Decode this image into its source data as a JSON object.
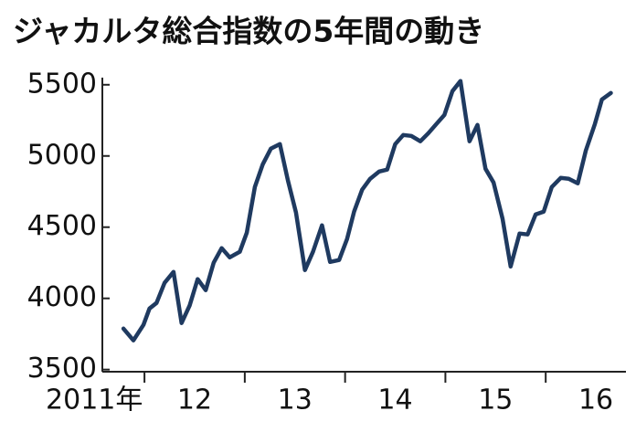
{
  "chart_data": {
    "type": "line",
    "title": "ジャカルタ総合指数の5年間の動き",
    "x": [
      2011.79,
      2011.89,
      2011.99,
      2012.05,
      2012.12,
      2012.2,
      2012.29,
      2012.37,
      2012.45,
      2012.53,
      2012.61,
      2012.69,
      2012.77,
      2012.85,
      2012.95,
      2013.02,
      2013.1,
      2013.18,
      2013.26,
      2013.35,
      2013.43,
      2013.51,
      2013.6,
      2013.68,
      2013.77,
      2013.85,
      2013.94,
      2014.02,
      2014.09,
      2014.17,
      2014.25,
      2014.34,
      2014.42,
      2014.5,
      2014.58,
      2014.66,
      2014.75,
      2014.83,
      2014.91,
      2014.99,
      2015.07,
      2015.15,
      2015.24,
      2015.32,
      2015.4,
      2015.48,
      2015.57,
      2015.65,
      2015.74,
      2015.82,
      2015.9,
      2015.98,
      2016.06,
      2016.15,
      2016.23,
      2016.32,
      2016.4,
      2016.49,
      2016.56,
      2016.65
    ],
    "series": [
      {
        "color": "#1f3a60",
        "values": [
          3788,
          3705,
          3814,
          3929,
          3968,
          4109,
          4186,
          3827,
          3949,
          4135,
          4058,
          4250,
          4353,
          4288,
          4327,
          4462,
          4782,
          4942,
          5051,
          5083,
          4827,
          4603,
          4199,
          4327,
          4513,
          4256,
          4269,
          4417,
          4609,
          4763,
          4840,
          4891,
          4904,
          5083,
          5147,
          5141,
          5103,
          5160,
          5224,
          5288,
          5455,
          5526,
          5103,
          5218,
          4910,
          4814,
          4558,
          4224,
          4455,
          4449,
          4590,
          4609,
          4782,
          4846,
          4840,
          4808,
          5038,
          5224,
          5397,
          5442
        ]
      }
    ],
    "xlim": [
      2011.58,
      2016.8
    ],
    "xticks": [
      {
        "value": 2011.5,
        "label": "2011年"
      },
      {
        "value": 2012.5,
        "label": "12"
      },
      {
        "value": 2013.5,
        "label": "13"
      },
      {
        "value": 2014.5,
        "label": "14"
      },
      {
        "value": 2015.5,
        "label": "15"
      },
      {
        "value": 2016.5,
        "label": "16"
      }
    ],
    "year_boundaries": [
      2012,
      2013,
      2014,
      2015,
      2016
    ],
    "ylim": [
      3485,
      5550
    ],
    "yticks": [
      3500,
      4000,
      4500,
      5000,
      5500
    ]
  }
}
